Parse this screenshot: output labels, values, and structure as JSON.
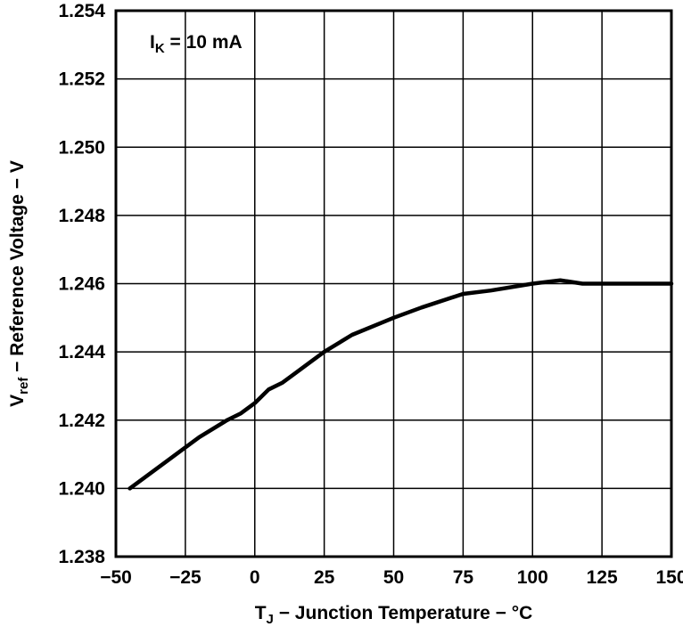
{
  "chart_data": {
    "type": "line",
    "title": "",
    "annotation": {
      "pre": "I",
      "sub": "K",
      "post": " = 10 mA"
    },
    "xlabel": {
      "pre": "T",
      "sub": "J",
      "post": " − Junction Temperature − °C"
    },
    "ylabel": {
      "pre": "V",
      "sub": "ref",
      "post": " − Reference Voltage − V"
    },
    "xlim": [
      -50,
      150
    ],
    "ylim": [
      1.238,
      1.254
    ],
    "grid": true,
    "legend_position": "none",
    "x_ticks": {
      "values": [
        -50,
        -25,
        0,
        25,
        50,
        75,
        100,
        125,
        150
      ],
      "labels": [
        "−50",
        "−25",
        "0",
        "25",
        "50",
        "75",
        "100",
        "125",
        "150"
      ]
    },
    "y_ticks": {
      "values": [
        1.238,
        1.24,
        1.242,
        1.244,
        1.246,
        1.248,
        1.25,
        1.252,
        1.254
      ],
      "labels": [
        "1.238",
        "1.240",
        "1.242",
        "1.244",
        "1.246",
        "1.248",
        "1.250",
        "1.252",
        "1.254"
      ]
    },
    "series": [
      {
        "name": "Vref vs TJ at IK = 10 mA",
        "color": "#000000",
        "width": 4.5,
        "points": [
          [
            -45,
            1.24
          ],
          [
            -40,
            1.2403
          ],
          [
            -30,
            1.2409
          ],
          [
            -20,
            1.2415
          ],
          [
            -10,
            1.242
          ],
          [
            -5,
            1.2422
          ],
          [
            0,
            1.2425
          ],
          [
            5,
            1.2429
          ],
          [
            10,
            1.2431
          ],
          [
            15,
            1.2434
          ],
          [
            20,
            1.2437
          ],
          [
            25,
            1.244
          ],
          [
            35,
            1.2445
          ],
          [
            50,
            1.245
          ],
          [
            60,
            1.2453
          ],
          [
            75,
            1.2457
          ],
          [
            85,
            1.2458
          ],
          [
            100,
            1.246
          ],
          [
            110,
            1.2461
          ],
          [
            118,
            1.246
          ],
          [
            125,
            1.246
          ],
          [
            135,
            1.246
          ],
          [
            150,
            1.246
          ]
        ]
      }
    ],
    "colors": {
      "grid": "#000000",
      "frame": "#000000",
      "text": "#000000",
      "background": "#ffffff"
    }
  }
}
